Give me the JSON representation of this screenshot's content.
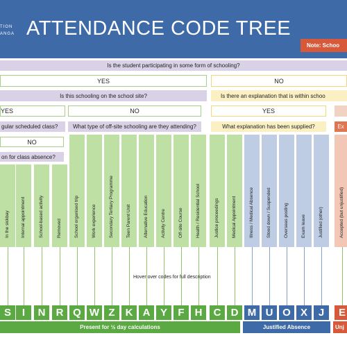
{
  "header": {
    "logo_line1": "TION",
    "logo_line2": "ANGA",
    "title": "ATTENDANCE CODE TREE",
    "note": "Note: Schoo"
  },
  "tree": {
    "q1": "Is the student participating in some form of schooling?",
    "yes1": "YES",
    "no1": "NO",
    "q2": "Is this schooling on the school site?",
    "q3": "Is there an explanation that is within schoo",
    "yes2": "YES",
    "no2": "NO",
    "yes3": "YES",
    "q4": "gular scheduled class?",
    "q5": "What type of off-site schooling are they attending?",
    "q6": "What explanation has been supplied?",
    "q7": "Ex",
    "no3": "NO",
    "q8": "on for class absence?"
  },
  "columns": [
    {
      "label": "In the sickbay",
      "code": "S",
      "group": "present"
    },
    {
      "label": "Internal appointment",
      "code": "I",
      "group": "present"
    },
    {
      "label": "School-based activity",
      "code": "N",
      "group": "present"
    },
    {
      "label": "Removed",
      "code": "R",
      "group": "present"
    },
    {
      "label": "School organised trip",
      "code": "Q",
      "group": "present"
    },
    {
      "label": "Work experience",
      "code": "W",
      "group": "present"
    },
    {
      "label": "Secondary Tertiary Programme",
      "code": "Z",
      "group": "present"
    },
    {
      "label": "Teen Parent Unit",
      "code": "K",
      "group": "present"
    },
    {
      "label": "Alternative Education",
      "code": "A",
      "group": "present"
    },
    {
      "label": "Activity Centre",
      "code": "Y",
      "group": "present"
    },
    {
      "label": "Off-site Course",
      "code": "F",
      "group": "present"
    },
    {
      "label": "Health / Residential School",
      "code": "H",
      "group": "present"
    },
    {
      "label": "Justice proceedings",
      "code": "C",
      "group": "present"
    },
    {
      "label": "Medical Appointment",
      "code": "D",
      "group": "present"
    },
    {
      "label": "Illness / Medical Absence",
      "code": "M",
      "group": "justified"
    },
    {
      "label": "Stood down / Suspended",
      "code": "U",
      "group": "justified"
    },
    {
      "label": "Overseas posting",
      "code": "O",
      "group": "justified"
    },
    {
      "label": "Exam leave",
      "code": "X",
      "group": "justified"
    },
    {
      "label": "Justified (other)",
      "code": "J",
      "group": "justified"
    },
    {
      "label": "Accepted (but unjustified)",
      "code": "E",
      "group": "unjustified"
    }
  ],
  "hover_text": "Hover over codes for full description",
  "footer": {
    "present": "Present for ½ day calculations",
    "justified": "Justified Absence",
    "unjustified": "Unj"
  },
  "colors": {
    "header_blue": "#3e6aa8",
    "present_green": "#5aa942",
    "accent_orange": "#d8583a"
  }
}
